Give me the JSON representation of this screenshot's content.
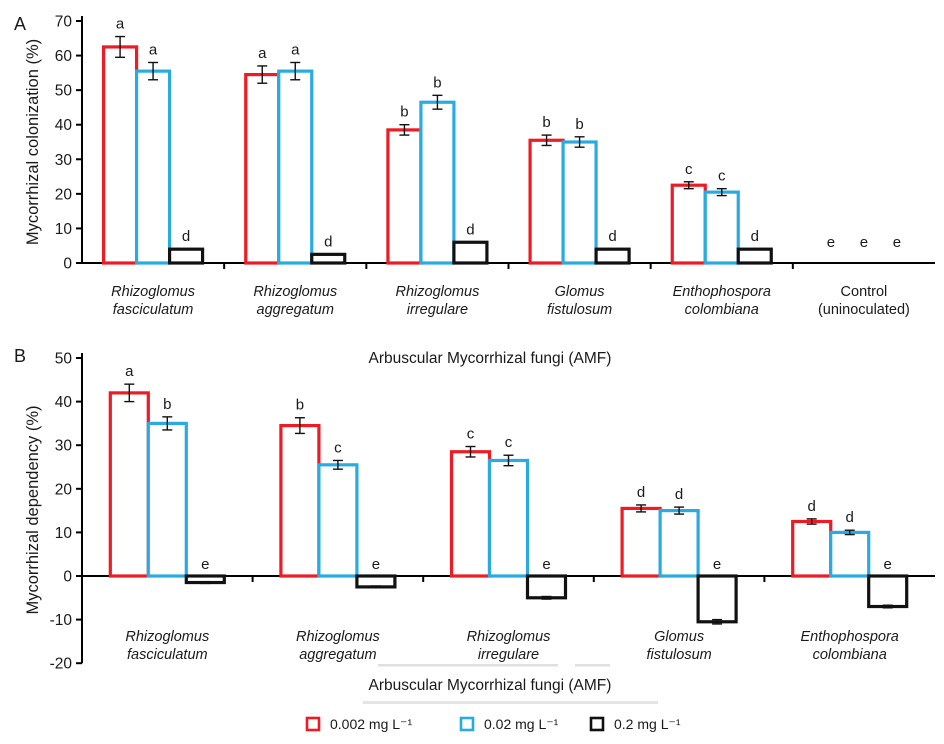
{
  "chart_data": [
    {
      "panel": "A",
      "type": "bar",
      "title": "",
      "xlabel": "Arbuscular Mycorrhizal fungi (AMF)",
      "ylabel": "Mycorrhizal colonization (%)",
      "ylim": [
        0,
        70
      ],
      "ytick_step": 10,
      "grid": false,
      "legend_position": "bottom",
      "categories": [
        {
          "line1": "Rhizoglomus",
          "line2": "fasciculatum",
          "italic": true
        },
        {
          "line1": "Rhizoglomus",
          "line2": "aggregatum",
          "italic": true
        },
        {
          "line1": "Rhizoglomus",
          "line2": "irregulare",
          "italic": true
        },
        {
          "line1": "Glomus",
          "line2": "fistulosum",
          "italic": true
        },
        {
          "line1": "Enthophospora",
          "line2": "colombiana",
          "italic": true
        },
        {
          "line1": "Control",
          "line2": "(uninoculated)",
          "italic": false
        }
      ],
      "series": [
        {
          "name": "0.002 mg L⁻¹",
          "color": "#ed1c24",
          "values": [
            62.5,
            54.5,
            38.5,
            35.5,
            22.5,
            null
          ],
          "errors": [
            3,
            2.5,
            1.5,
            1.5,
            1,
            null
          ],
          "letters": [
            "a",
            "a",
            "b",
            "b",
            "c",
            "e"
          ]
        },
        {
          "name": "0.02 mg L⁻¹",
          "color": "#29abe2",
          "values": [
            55.5,
            55.5,
            46.5,
            35,
            20.5,
            null
          ],
          "errors": [
            2.5,
            2.5,
            2,
            1.5,
            1,
            null
          ],
          "letters": [
            "a",
            "a",
            "b",
            "b",
            "c",
            "e"
          ]
        },
        {
          "name": "0.2 mg L⁻¹",
          "color": "#111111",
          "values": [
            4,
            2.5,
            6,
            4,
            4,
            null
          ],
          "errors": [
            null,
            null,
            null,
            null,
            null,
            null
          ],
          "letters": [
            "d",
            "d",
            "d",
            "d",
            "d",
            "e"
          ]
        }
      ]
    },
    {
      "panel": "B",
      "type": "bar",
      "title": "",
      "xlabel": "Arbuscular Mycorrhizal fungi (AMF)",
      "ylabel": "Mycorrhizal dependency (%)",
      "ylim": [
        -20,
        50
      ],
      "ytick_step": 10,
      "grid": false,
      "legend_position": "bottom",
      "categories": [
        {
          "line1": "Rhizoglomus",
          "line2": "fasciculatum",
          "italic": true
        },
        {
          "line1": "Rhizoglomus",
          "line2": "aggregatum",
          "italic": true
        },
        {
          "line1": "Rhizoglomus",
          "line2": "irregulare",
          "italic": true
        },
        {
          "line1": "Glomus",
          "line2": "fistulosum",
          "italic": true
        },
        {
          "line1": "Enthophospora",
          "line2": "colombiana",
          "italic": true
        }
      ],
      "series": [
        {
          "name": "0.002 mg L⁻¹",
          "color": "#ed1c24",
          "values": [
            42,
            34.5,
            28.5,
            15.5,
            12.5
          ],
          "errors": [
            2,
            1.8,
            1.2,
            0.8,
            0.6
          ],
          "letters": [
            "a",
            "b",
            "c",
            "d",
            "d"
          ]
        },
        {
          "name": "0.02 mg L⁻¹",
          "color": "#29abe2",
          "values": [
            35,
            25.5,
            26.5,
            15,
            10
          ],
          "errors": [
            1.5,
            1,
            1.2,
            0.8,
            0.5
          ],
          "letters": [
            "b",
            "c",
            "c",
            "d",
            "d"
          ]
        },
        {
          "name": "0.2 mg L⁻¹",
          "color": "#111111",
          "values": [
            -1.5,
            -2.5,
            -5,
            -10.5,
            -7
          ],
          "errors": [
            0.2,
            0.2,
            0.3,
            0.5,
            0.3
          ],
          "letters": [
            "e",
            "e",
            "e",
            "e",
            "e"
          ]
        }
      ]
    }
  ],
  "legend": {
    "items": [
      {
        "label": "0.002 mg L⁻¹",
        "color": "#ed1c24"
      },
      {
        "label": "0.02 mg L⁻¹",
        "color": "#29abe2"
      },
      {
        "label": "0.2 mg L⁻¹",
        "color": "#111111"
      }
    ]
  }
}
